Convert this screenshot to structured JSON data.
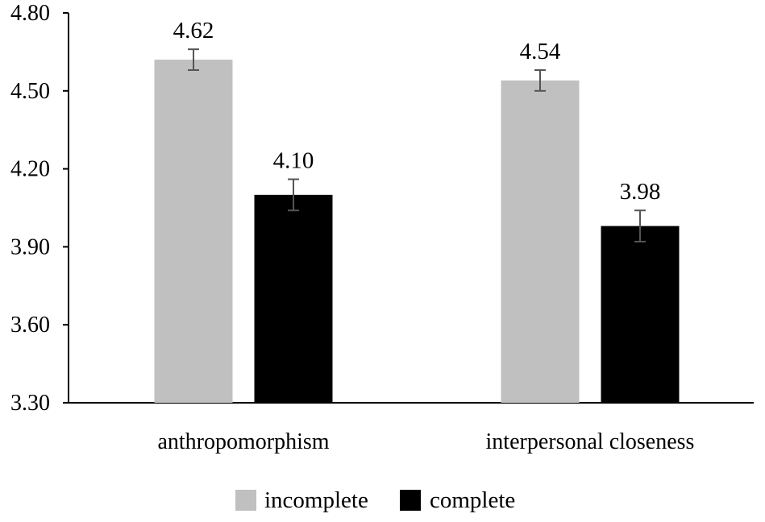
{
  "chart_data": {
    "type": "bar",
    "title": "",
    "xlabel": "",
    "ylabel": "",
    "categories": [
      "anthropomorphism",
      "interpersonal closeness"
    ],
    "series": [
      {
        "name": "incomplete",
        "color": "#c0c0c0",
        "values": [
          4.62,
          4.54
        ],
        "labels": [
          "4.62",
          "4.54"
        ],
        "error": [
          0.04,
          0.04
        ]
      },
      {
        "name": "complete",
        "color": "#000000",
        "values": [
          4.1,
          3.98
        ],
        "labels": [
          "4.10",
          "3.98"
        ],
        "error": [
          0.06,
          0.06
        ]
      }
    ],
    "ylim": [
      3.3,
      4.8
    ],
    "yticks": [
      3.3,
      3.6,
      3.9,
      4.2,
      4.5,
      4.8
    ],
    "ytick_labels": [
      "3.30",
      "3.60",
      "3.90",
      "4.20",
      "4.50",
      "4.80"
    ],
    "grid": false,
    "legend_position": "bottom",
    "error_bar_color": "#555555"
  }
}
